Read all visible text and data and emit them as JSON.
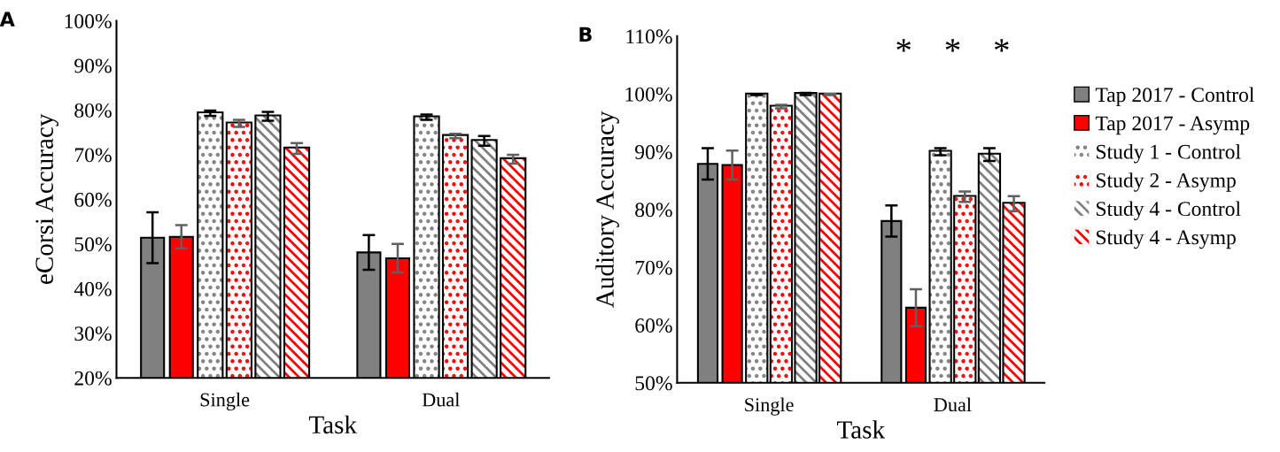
{
  "chart_data": [
    {
      "type": "bar",
      "title": "A",
      "xlabel": "Task",
      "ylabel": "eCorsi Accuracy",
      "categories": [
        "Single",
        "Dual"
      ],
      "ylim": [
        20,
        100
      ],
      "yticks": [
        {
          "value": 20,
          "label": "20%"
        },
        {
          "value": 30,
          "label": "30%"
        },
        {
          "value": 40,
          "label": "40%"
        },
        {
          "value": 50,
          "label": "50%"
        },
        {
          "value": 60,
          "label": "60%"
        },
        {
          "value": 70,
          "label": "70%"
        },
        {
          "value": 80,
          "label": "80%"
        },
        {
          "value": 90,
          "label": "90%"
        },
        {
          "value": 100,
          "label": "100%"
        }
      ],
      "grid": false,
      "legend": false,
      "series": [
        {
          "color": "#808080",
          "values": [
            51.4,
            48.1
          ],
          "errors": [
            5.7,
            3.9
          ]
        },
        {
          "color": "#ff0000",
          "values": [
            51.6,
            46.8
          ],
          "errors": [
            2.6,
            3.2
          ]
        },
        {
          "color": "#808080",
          "values": [
            79.3,
            78.4
          ],
          "errors": [
            0.6,
            0.6
          ]
        },
        {
          "color": "#ff0000",
          "values": [
            77.0,
            74.2
          ],
          "errors": [
            0.8,
            0.5
          ]
        },
        {
          "color": "#808080",
          "values": [
            78.6,
            73.1
          ],
          "errors": [
            1.0,
            1.1
          ]
        },
        {
          "color": "#ff0000",
          "values": [
            71.4,
            69.0
          ],
          "errors": [
            1.2,
            1.0
          ]
        }
      ]
    },
    {
      "type": "bar",
      "title": "B",
      "xlabel": "Task",
      "ylabel": "Auditory Accuracy",
      "categories": [
        "Single",
        "Dual"
      ],
      "ylim": [
        50,
        110
      ],
      "yticks": [
        {
          "value": 50,
          "label": "50%"
        },
        {
          "value": 60,
          "label": "60%"
        },
        {
          "value": 70,
          "label": "70%"
        },
        {
          "value": 80,
          "label": "80%"
        },
        {
          "value": 90,
          "label": "90%"
        },
        {
          "value": 100,
          "label": "100%"
        },
        {
          "value": 110,
          "label": "110%"
        }
      ],
      "grid": false,
      "legend": "right",
      "annotations": [
        "*",
        "*",
        "*"
      ],
      "series": [
        {
          "name": "Tap 2017 - Control",
          "color": "#808080",
          "values": [
            87.9,
            78.0
          ],
          "errors": [
            2.7,
            2.7
          ]
        },
        {
          "name": "Tap 2017 - Asymp",
          "color": "#ff0000",
          "values": [
            87.7,
            63.0
          ],
          "errors": [
            2.5,
            3.2
          ]
        },
        {
          "name": "Study 1 - Control",
          "color": "#808080",
          "values": [
            99.9,
            90.0
          ],
          "errors": [
            0.1,
            0.6
          ]
        },
        {
          "name": "Study 2 - Asymp",
          "color": "#ff0000",
          "values": [
            97.8,
            82.2
          ],
          "errors": [
            0.3,
            0.9
          ]
        },
        {
          "name": "Study 4 - Control",
          "color": "#808080",
          "values": [
            100.0,
            89.5
          ],
          "errors": [
            0.2,
            1.1
          ]
        },
        {
          "name": "Study 4 - Asymp",
          "color": "#ff0000",
          "values": [
            99.9,
            81.0
          ],
          "errors": [
            0.1,
            1.3
          ]
        }
      ]
    }
  ]
}
